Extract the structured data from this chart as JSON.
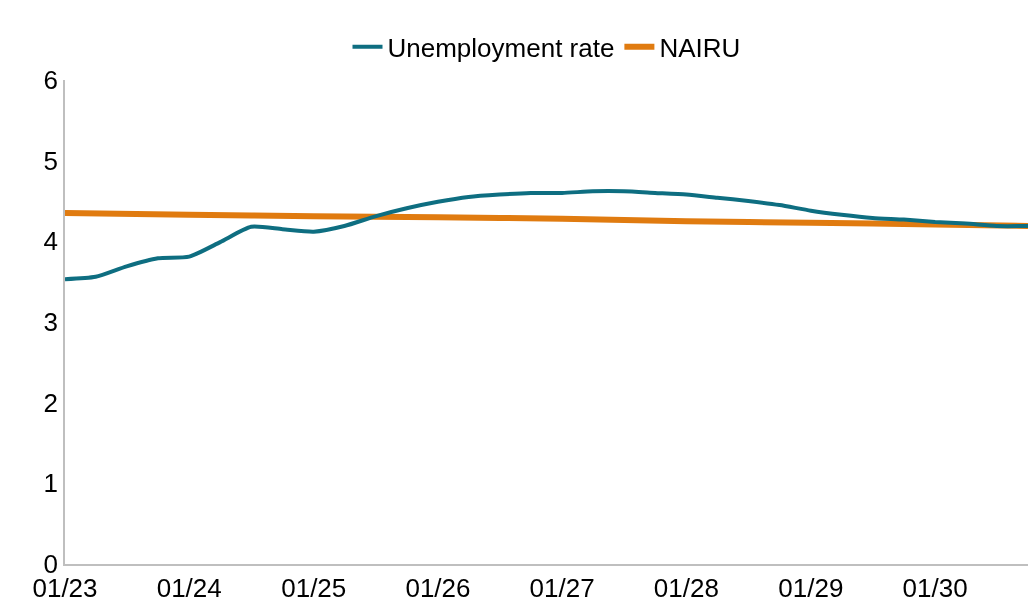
{
  "chart_data": {
    "type": "line",
    "x": [
      "2023-01",
      "2023-04",
      "2023-07",
      "2023-10",
      "2024-01",
      "2024-04",
      "2024-07",
      "2024-10",
      "2025-01",
      "2025-04",
      "2025-07",
      "2025-10",
      "2026-01",
      "2026-04",
      "2026-07",
      "2026-10",
      "2027-01",
      "2027-04",
      "2027-07",
      "2027-10",
      "2028-01",
      "2028-04",
      "2028-07",
      "2028-10",
      "2029-01",
      "2029-04",
      "2029-07",
      "2029-10",
      "2030-01",
      "2030-04",
      "2030-07",
      "2030-10"
    ],
    "series": [
      {
        "name": "Unemployment rate",
        "color": "#0e6e81",
        "values": [
          3.53,
          3.56,
          3.69,
          3.79,
          3.81,
          3.99,
          4.18,
          4.15,
          4.12,
          4.19,
          4.31,
          4.41,
          4.49,
          4.55,
          4.58,
          4.6,
          4.6,
          4.62,
          4.62,
          4.6,
          4.58,
          4.54,
          4.5,
          4.45,
          4.38,
          4.33,
          4.29,
          4.27,
          4.24,
          4.22,
          4.19,
          4.19
        ]
      },
      {
        "name": "NAIRU",
        "color": "#e07b10",
        "x": [
          "2023-01",
          "2024-01",
          "2025-01",
          "2026-01",
          "2027-01",
          "2028-01",
          "2029-01",
          "2030-01",
          "2030-10"
        ],
        "values": [
          4.35,
          4.33,
          4.31,
          4.3,
          4.28,
          4.25,
          4.23,
          4.21,
          4.19
        ]
      }
    ],
    "xlim": [
      "2023-01",
      "2030-10"
    ],
    "xticks": [
      {
        "value": "2023-01",
        "label": "01/23"
      },
      {
        "value": "2024-01",
        "label": "01/24"
      },
      {
        "value": "2025-01",
        "label": "01/25"
      },
      {
        "value": "2026-01",
        "label": "01/26"
      },
      {
        "value": "2027-01",
        "label": "01/27"
      },
      {
        "value": "2028-01",
        "label": "01/28"
      },
      {
        "value": "2029-01",
        "label": "01/29"
      },
      {
        "value": "2030-01",
        "label": "01/30"
      }
    ],
    "ylim": [
      0,
      6
    ],
    "yticks": [
      0,
      1,
      2,
      3,
      4,
      5,
      6
    ],
    "grid": false,
    "legend": "top",
    "line_style": "solid",
    "marker": "none"
  }
}
